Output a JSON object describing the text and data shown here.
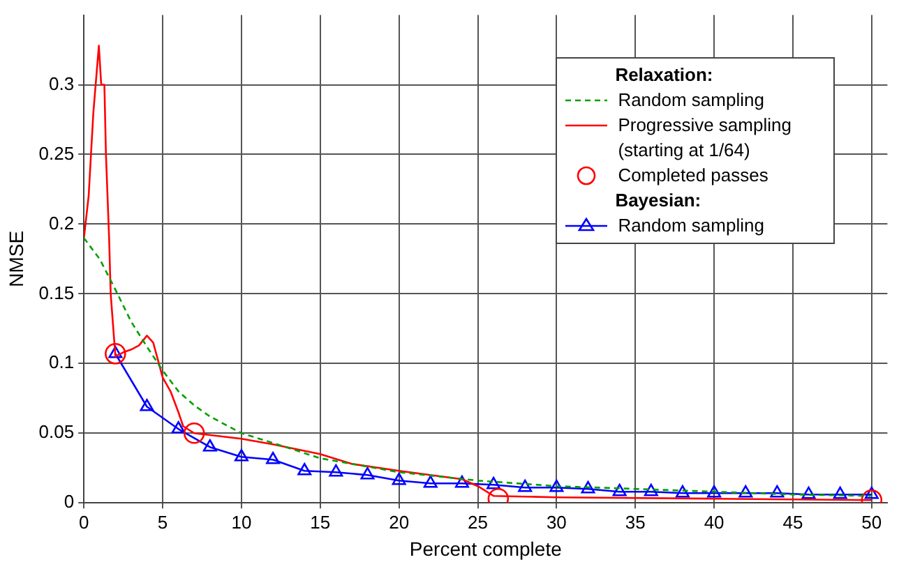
{
  "chart_data": {
    "type": "line",
    "xlabel": "Percent complete",
    "ylabel": "NMSE",
    "xlim": [
      0,
      51
    ],
    "xticks": [
      0,
      5,
      10,
      15,
      20,
      25,
      30,
      35,
      40,
      45,
      50
    ],
    "ylim": [
      0,
      0.35
    ],
    "yticks": [
      0,
      0.05,
      0.1,
      0.15,
      0.2,
      0.25,
      0.3
    ],
    "grid": true,
    "legend": "top right",
    "legend_title": "Relaxation:",
    "annotations": [
      "Bayesian:"
    ],
    "series": [
      {
        "name": "Random sampling",
        "type": "line",
        "color": "#00a000",
        "line_style": "dashed",
        "marker": "none",
        "x": [
          0,
          1,
          2,
          3,
          4,
          5,
          6,
          7,
          8,
          10,
          12,
          15,
          20,
          25,
          30,
          35,
          40,
          45,
          50
        ],
        "values": [
          0.19,
          0.175,
          0.153,
          0.13,
          0.112,
          0.095,
          0.08,
          0.07,
          0.062,
          0.05,
          0.043,
          0.032,
          0.022,
          0.016,
          0.012,
          0.01,
          0.008,
          0.006,
          0.005
        ]
      },
      {
        "name": "Progressive sampling (starting at 1/64)",
        "type": "line",
        "color": "#ff0000",
        "line_style": "solid",
        "marker": "none",
        "x": [
          0,
          0.3,
          0.6,
          0.95,
          1.1,
          1.3,
          1.4,
          1.6,
          1.7,
          2,
          2.5,
          3,
          3.5,
          4,
          4.4,
          5,
          5.5,
          6,
          6.3,
          7,
          10,
          12,
          15,
          17,
          20,
          24,
          25,
          26,
          30,
          40,
          50
        ],
        "values": [
          0.19,
          0.22,
          0.28,
          0.328,
          0.3,
          0.3,
          0.25,
          0.19,
          0.15,
          0.105,
          0.108,
          0.11,
          0.113,
          0.12,
          0.115,
          0.09,
          0.08,
          0.065,
          0.055,
          0.05,
          0.046,
          0.042,
          0.035,
          0.028,
          0.023,
          0.017,
          0.012,
          0.005,
          0.004,
          0.003,
          0.002
        ]
      },
      {
        "name": "Completed passes",
        "type": "scatter",
        "color": "#ff0000",
        "marker": "circle",
        "x": [
          2,
          7,
          26.3,
          50
        ],
        "values": [
          0.107,
          0.05,
          0.003,
          0.002
        ]
      },
      {
        "name": "Random sampling",
        "type": "line",
        "color": "#0000ff",
        "line_style": "solid",
        "marker": "triangle",
        "x": [
          2,
          4,
          6,
          8,
          10,
          12,
          14,
          16,
          18,
          20,
          22,
          24,
          26,
          28,
          30,
          32,
          34,
          36,
          38,
          40,
          42,
          44,
          46,
          48,
          50
        ],
        "values": [
          0.107,
          0.069,
          0.053,
          0.04,
          0.033,
          0.031,
          0.023,
          0.022,
          0.02,
          0.016,
          0.014,
          0.014,
          0.013,
          0.011,
          0.011,
          0.01,
          0.008,
          0.008,
          0.007,
          0.007,
          0.007,
          0.007,
          0.006,
          0.006,
          0.006
        ]
      }
    ]
  }
}
